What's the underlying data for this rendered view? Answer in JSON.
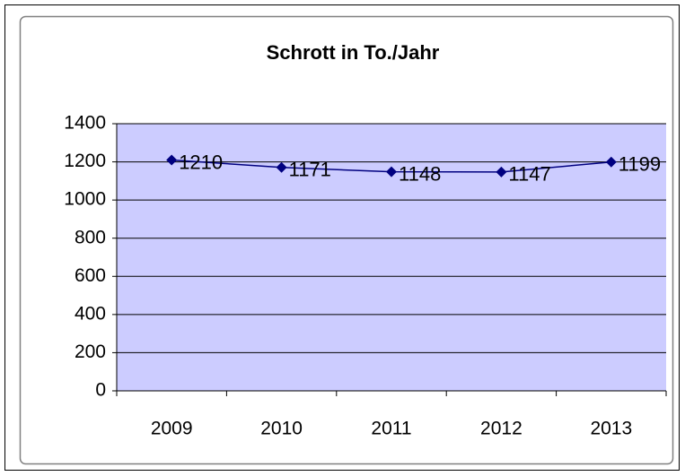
{
  "chart_data": {
    "type": "line",
    "title": "Schrott in To./Jahr",
    "categories": [
      "2009",
      "2010",
      "2011",
      "2012",
      "2013"
    ],
    "values": [
      1210,
      1171,
      1148,
      1147,
      1199
    ],
    "color": "#000080",
    "plot_background": "#ccccff",
    "ylim": [
      0,
      1400
    ],
    "yticks": [
      0,
      200,
      400,
      600,
      800,
      1000,
      1200,
      1400
    ],
    "grid": true
  }
}
